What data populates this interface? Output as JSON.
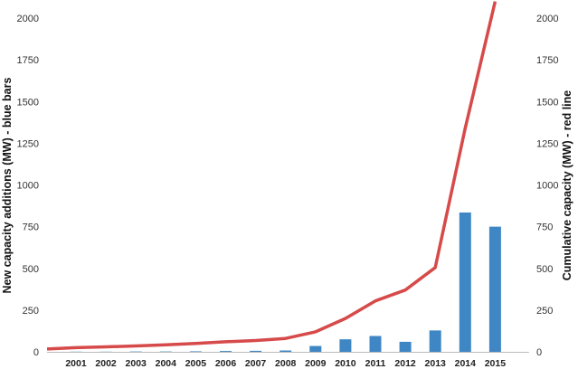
{
  "chart_data": {
    "type": "bar",
    "categories": [
      "2001",
      "2002",
      "2003",
      "2004",
      "2005",
      "2006",
      "2007",
      "2008",
      "2009",
      "2010",
      "2011",
      "2012",
      "2013",
      "2014",
      "2015"
    ],
    "series": [
      {
        "values": [
          1,
          1,
          2,
          2,
          3,
          5,
          6,
          8,
          35,
          75,
          95,
          60,
          128,
          835,
          750
        ],
        "color": "#3f86c4",
        "render": "bars"
      },
      {
        "values": [
          25,
          30,
          35,
          42,
          50,
          60,
          68,
          80,
          120,
          200,
          305,
          370,
          505,
          1340,
          2100
        ],
        "color": "#d64a4a",
        "render": "line"
      }
    ],
    "line_start_value": 17,
    "ylabel": "New capacity additions (MW) - blue bars",
    "y2label": "Cumulative capacity (MW) - red line",
    "ylim": [
      0,
      2000
    ],
    "yticks": [
      "0",
      "250",
      "500",
      "750",
      "1000",
      "1250",
      "1500",
      "1750",
      "2000"
    ],
    "y2ticks": [
      "0",
      "250",
      "500",
      "750",
      "1000",
      "1250",
      "1500",
      "1750",
      "2000"
    ],
    "grid": false,
    "legend": "none"
  }
}
